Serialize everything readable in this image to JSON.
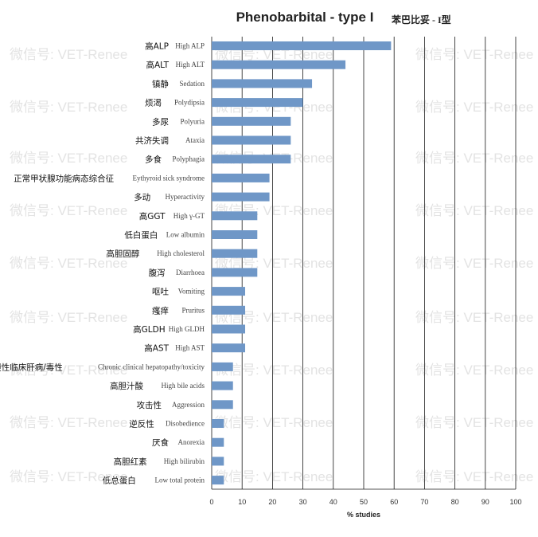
{
  "chart_data": {
    "type": "bar",
    "orientation": "horizontal",
    "title": "Phenobarbital - type I",
    "subtitle": "苯巴比妥 - I型",
    "xlabel": "% studies",
    "xlim": [
      0,
      100
    ],
    "xticks": [
      0,
      10,
      20,
      30,
      40,
      50,
      60,
      70,
      80,
      90,
      100
    ],
    "grid": "vertical",
    "bar_color": "#6f97c7",
    "categories": [
      {
        "cn": "高ALP",
        "en": "High ALP",
        "value": 59
      },
      {
        "cn": "高ALT",
        "en": "High ALT",
        "value": 44
      },
      {
        "cn": "镇静",
        "en": "Sedation",
        "value": 33
      },
      {
        "cn": "烦渴",
        "en": "Polydipsia",
        "value": 30
      },
      {
        "cn": "多尿",
        "en": "Polyuria",
        "value": 26
      },
      {
        "cn": "共济失调",
        "en": "Ataxia",
        "value": 26
      },
      {
        "cn": "多食",
        "en": "Polyphagia",
        "value": 26
      },
      {
        "cn": "正常甲状腺功能病态综合征",
        "en": "Eythyroid sick syndrome",
        "value": 19
      },
      {
        "cn": "多动",
        "en": "Hyperactivity",
        "value": 19
      },
      {
        "cn": "高GGT",
        "en": "High γ-GT",
        "value": 15
      },
      {
        "cn": "低白蛋白",
        "en": "Low albumin",
        "value": 15
      },
      {
        "cn": "高胆固醇",
        "en": "High cholesterol",
        "value": 15
      },
      {
        "cn": "腹泻",
        "en": "Diarrhoea",
        "value": 15
      },
      {
        "cn": "呕吐",
        "en": "Vomiting",
        "value": 11
      },
      {
        "cn": "瘙痒",
        "en": "Pruritus",
        "value": 11
      },
      {
        "cn": "高GLDH",
        "en": "High GLDH",
        "value": 11
      },
      {
        "cn": "高AST",
        "en": "High AST",
        "value": 11
      },
      {
        "cn": "慢性临床肝病/毒性",
        "en": "Chronic clinical hepatopathy/toxicity",
        "value": 7
      },
      {
        "cn": "高胆汁酸",
        "en": "High bile acids",
        "value": 7
      },
      {
        "cn": "攻击性",
        "en": "Aggression",
        "value": 7
      },
      {
        "cn": "逆反性",
        "en": "Disobedience",
        "value": 4
      },
      {
        "cn": "厌食",
        "en": "Anorexia",
        "value": 4
      },
      {
        "cn": "高胆红素",
        "en": "High bilirubin",
        "value": 4
      },
      {
        "cn": "低总蛋白",
        "en": "Low total protein",
        "value": 4
      }
    ]
  },
  "watermark": "微信号: VET-Renee"
}
